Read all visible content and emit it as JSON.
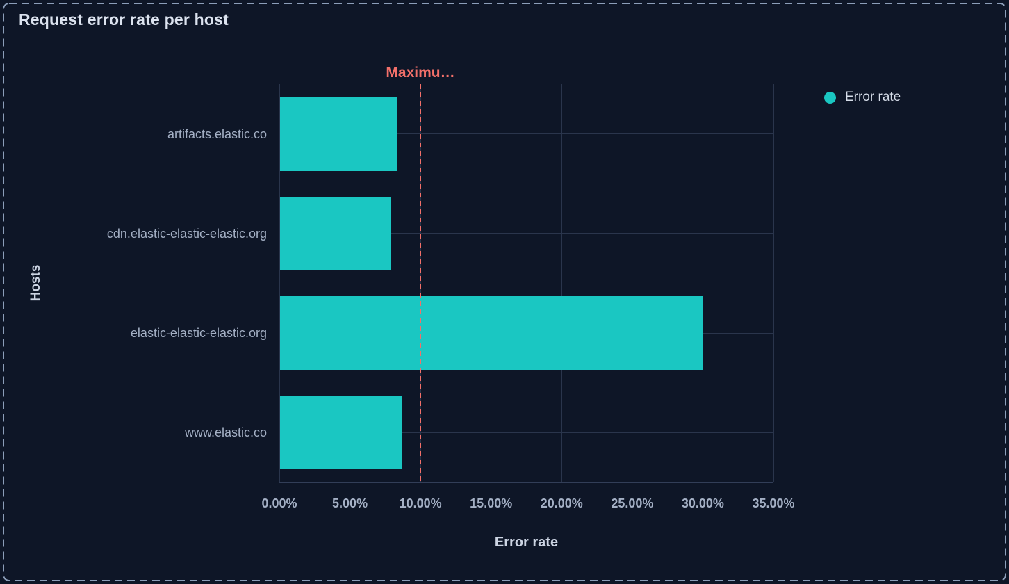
{
  "panel": {
    "title": "Request error rate per host"
  },
  "legend": {
    "items": [
      {
        "label": "Error rate",
        "color": "#1ac7c2",
        "marker": "dot"
      }
    ]
  },
  "chart_data": {
    "type": "bar",
    "orientation": "horizontal",
    "title": "Request error rate per host",
    "xlabel": "Error rate",
    "ylabel": "Hosts",
    "categories": [
      "artifacts.elastic.co",
      "cdn.elastic-elastic-elastic.org",
      "elastic-elastic-elastic.org",
      "www.elastic.co"
    ],
    "series": [
      {
        "name": "Error rate",
        "color": "#1ac7c2",
        "values": [
          8.3,
          7.9,
          30,
          8.7
        ]
      }
    ],
    "value_unit": "%",
    "xlim": [
      0,
      35
    ],
    "x_ticks": {
      "values": [
        0,
        5,
        10,
        15,
        20,
        25,
        30,
        35
      ],
      "labels": [
        "0.00%",
        "5.00%",
        "10.00%",
        "15.00%",
        "20.00%",
        "25.00%",
        "30.00%",
        "35.00%"
      ]
    },
    "grid": true,
    "legend_position": "top-right",
    "reference_line": {
      "value": 10,
      "label": "Maximu…",
      "style": "dashed",
      "orientation": "vertical",
      "color": "#f3706a"
    }
  },
  "colors": {
    "background": "#0e1627",
    "panel_border": "#8c9eb9",
    "bar": "#1ac7c2",
    "reference": "#f3706a",
    "gridline": "#2a354c",
    "axis_line": "#323e58",
    "title_text": "#dce3ef",
    "axis_label_text": "#a4b0c5",
    "axis_title_text": "#ccd4e3",
    "legend_text": "#d6dde9"
  }
}
